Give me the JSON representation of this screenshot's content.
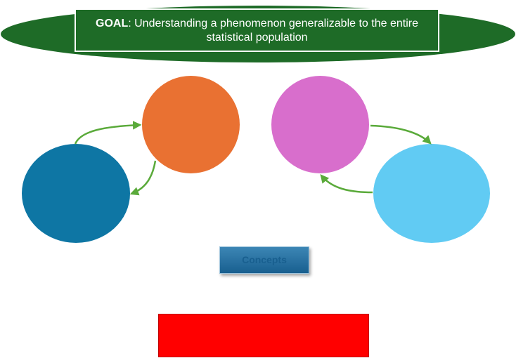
{
  "goal": {
    "prefix": "GOAL",
    "text": ": Understanding a phenomenon generalizable to the entire statistical population"
  },
  "concepts_button": {
    "label": "Concepts"
  },
  "colors": {
    "goal_green": "#1e6b27",
    "orange": "#e97132",
    "magenta": "#d86ecc",
    "dark_blue": "#0e76a4",
    "light_blue": "#61cbf3",
    "arrow_green": "#5aaa3a",
    "red": "#ff0000"
  }
}
